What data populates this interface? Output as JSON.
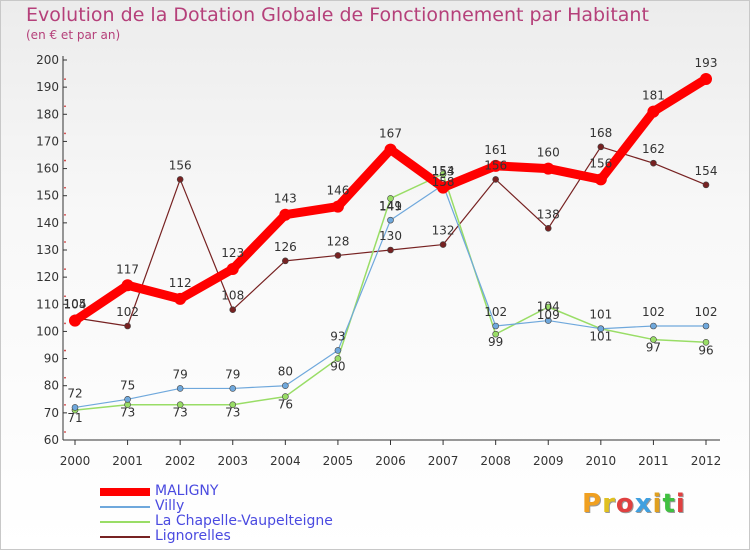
{
  "title": "Evolution de la Dotation Globale de Fonctionnement par Habitant",
  "subtitle": "(en € et par an)",
  "brand": "Proxiti",
  "chart_data": {
    "type": "line",
    "title": "Evolution de la Dotation Globale de Fonctionnement par Habitant",
    "subtitle": "(en € et par an)",
    "xlabel": "",
    "ylabel": "",
    "x": [
      "2000",
      "2001",
      "2002",
      "2003",
      "2004",
      "2005",
      "2006",
      "2007",
      "2008",
      "2009",
      "2010",
      "2011",
      "2012"
    ],
    "ylim": [
      60,
      200
    ],
    "yticks": [
      60,
      70,
      80,
      90,
      100,
      110,
      120,
      130,
      140,
      150,
      160,
      170,
      180,
      190,
      200
    ],
    "grid": false,
    "legend_position": "bottom-left",
    "series": [
      {
        "name": "MALIGNY",
        "color": "#ff0000",
        "values": [
          104,
          117,
          112,
          123,
          143,
          146,
          167,
          153,
          161,
          160,
          156,
          181,
          193
        ]
      },
      {
        "name": "Villy",
        "color": "#6fa8dc",
        "values": [
          72,
          75,
          79,
          79,
          80,
          93,
          141,
          154,
          102,
          104,
          101,
          102,
          102
        ]
      },
      {
        "name": "La Chapelle-Vaupelteigne",
        "color": "#99dd66",
        "values": [
          71,
          73,
          73,
          73,
          76,
          90,
          149,
          158,
          99,
          109,
          101,
          97,
          96
        ]
      },
      {
        "name": "Lignorelles",
        "color": "#772222",
        "values": [
          105,
          102,
          156,
          108,
          126,
          128,
          130,
          132,
          156,
          138,
          168,
          162,
          154
        ]
      }
    ]
  }
}
